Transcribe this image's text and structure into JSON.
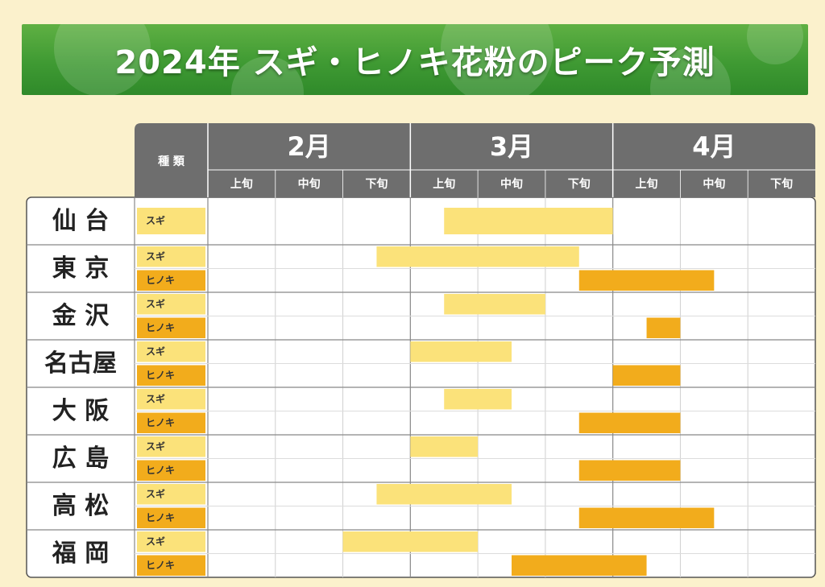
{
  "chart_data": {
    "type": "table",
    "title": "2024年 スギ・ヒノキ花粉のピーク予測",
    "type_header": "種 類",
    "months": [
      "2月",
      "3月",
      "4月"
    ],
    "periods": [
      "上旬",
      "中旬",
      "下旬"
    ],
    "pollen_labels": {
      "sugi": "スギ",
      "hinoki": "ヒノキ"
    },
    "colors": {
      "sugi": "#fbe27a",
      "hinoki": "#f2ac1c",
      "header": "#6e6e6e"
    },
    "cities": [
      {
        "name": "仙 台",
        "rows": [
          {
            "pollen": "sugi",
            "start": 3.5,
            "end": 6.0
          }
        ]
      },
      {
        "name": "東 京",
        "rows": [
          {
            "pollen": "sugi",
            "start": 2.5,
            "end": 5.5
          },
          {
            "pollen": "hinoki",
            "start": 5.5,
            "end": 7.5
          }
        ]
      },
      {
        "name": "金 沢",
        "rows": [
          {
            "pollen": "sugi",
            "start": 3.5,
            "end": 5.0
          },
          {
            "pollen": "hinoki",
            "start": 6.5,
            "end": 7.0
          }
        ]
      },
      {
        "name": "名古屋",
        "rows": [
          {
            "pollen": "sugi",
            "start": 3.0,
            "end": 4.5
          },
          {
            "pollen": "hinoki",
            "start": 6.0,
            "end": 7.0
          }
        ]
      },
      {
        "name": "大 阪",
        "rows": [
          {
            "pollen": "sugi",
            "start": 3.5,
            "end": 4.5
          },
          {
            "pollen": "hinoki",
            "start": 5.5,
            "end": 7.0
          }
        ]
      },
      {
        "name": "広 島",
        "rows": [
          {
            "pollen": "sugi",
            "start": 3.0,
            "end": 4.0
          },
          {
            "pollen": "hinoki",
            "start": 5.5,
            "end": 7.0
          }
        ]
      },
      {
        "name": "高 松",
        "rows": [
          {
            "pollen": "sugi",
            "start": 2.5,
            "end": 4.5
          },
          {
            "pollen": "hinoki",
            "start": 5.5,
            "end": 7.5
          }
        ]
      },
      {
        "name": "福 岡",
        "rows": [
          {
            "pollen": "sugi",
            "start": 2.0,
            "end": 4.0
          },
          {
            "pollen": "hinoki",
            "start": 4.5,
            "end": 6.5
          }
        ]
      }
    ]
  }
}
